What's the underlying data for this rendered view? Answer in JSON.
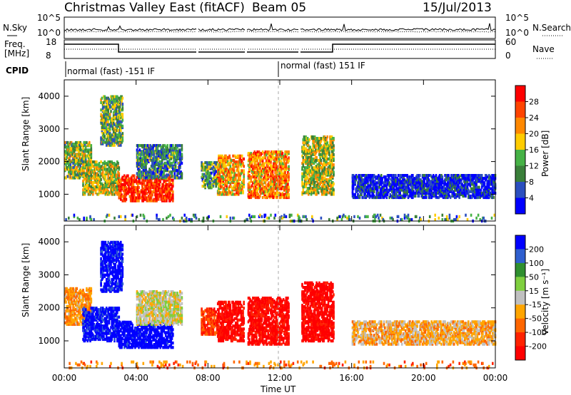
{
  "header": {
    "station": "Christmas Valley East (fitACF)",
    "beam": "Beam 05",
    "date": "15/Jul/2013"
  },
  "noise_panel": {
    "left_label": "N.Sky",
    "right_label": "N.Search",
    "ticks_left": [
      "10^5",
      "10^0"
    ],
    "ticks_right": [
      "10^5",
      "10^0"
    ]
  },
  "freq_panel": {
    "left_label_1": "Freq.",
    "left_label_2": "[MHz]",
    "right_label": "Nave",
    "ticks_left": [
      "18",
      "8"
    ],
    "ticks_right": [
      "60",
      "0"
    ]
  },
  "cpid": {
    "label": "CPID",
    "mode1": "normal (fast) -151 IF",
    "mode2": "normal (fast) 151 IF"
  },
  "colors": {
    "power_scale": [
      "#0000ff",
      "#2b4fbf",
      "#3a7f3a",
      "#46b246",
      "#ffcc00",
      "#ff8800",
      "#ff4400",
      "#ff0000"
    ],
    "velocity_scale": [
      "#0000ff",
      "#2f5fcf",
      "#2f8f2f",
      "#7fcf3f",
      "#c0c0c0",
      "#ffa500",
      "#ff6600",
      "#ff2200",
      "#ff0000"
    ]
  },
  "chart_data": [
    {
      "type": "heatmap",
      "name": "power",
      "ylabel": "Slant Range [km]",
      "ylim": [
        180,
        4500
      ],
      "y_ticks": [
        1000,
        2000,
        3000,
        4000
      ],
      "xlim_hours": [
        0,
        24
      ],
      "x_ticks": [
        "00:00",
        "04:00",
        "08:00",
        "12:00",
        "16:00",
        "20:00",
        "00:00"
      ],
      "colorbar": {
        "label": "Power [dB]",
        "ticks": [
          4,
          8,
          12,
          16,
          20,
          24,
          28
        ]
      },
      "scatter_regions": [
        {
          "t0": 0.0,
          "t1": 1.5,
          "r0": 1500,
          "r1": 2600,
          "level": 0.45
        },
        {
          "t0": 1.0,
          "t1": 3.0,
          "r0": 1000,
          "r1": 2000,
          "level": 0.5
        },
        {
          "t0": 2.0,
          "t1": 3.2,
          "r0": 2500,
          "r1": 4000,
          "level": 0.4
        },
        {
          "t0": 3.0,
          "t1": 6.0,
          "r0": 800,
          "r1": 1600,
          "level": 0.9
        },
        {
          "t0": 4.0,
          "t1": 6.5,
          "r0": 1500,
          "r1": 2500,
          "level": 0.3
        },
        {
          "t0": 7.6,
          "t1": 8.5,
          "r0": 1200,
          "r1": 2000,
          "level": 0.35
        },
        {
          "t0": 8.5,
          "t1": 10.0,
          "r0": 1000,
          "r1": 2200,
          "level": 0.65
        },
        {
          "t0": 10.2,
          "t1": 12.5,
          "r0": 900,
          "r1": 2300,
          "level": 0.7
        },
        {
          "t0": 13.2,
          "t1": 15.0,
          "r0": 1000,
          "r1": 2800,
          "level": 0.5
        },
        {
          "t0": 16.0,
          "t1": 24.0,
          "r0": 900,
          "r1": 1600,
          "level": 0.1
        },
        {
          "t0": 0.0,
          "t1": 24.0,
          "r0": 180,
          "r1": 400,
          "level": 0.3
        }
      ]
    },
    {
      "type": "heatmap",
      "name": "velocity",
      "ylabel": "Slant Range [km]",
      "ylim": [
        180,
        4500
      ],
      "y_ticks": [
        1000,
        2000,
        3000,
        4000
      ],
      "xlim_hours": [
        0,
        24
      ],
      "x_ticks": [
        "00:00",
        "04:00",
        "08:00",
        "12:00",
        "16:00",
        "20:00",
        "00:00"
      ],
      "xlabel": "Time UT",
      "colorbar": {
        "label": "Velocity [m s⁻¹]",
        "ticks": [
          200,
          100,
          50,
          15,
          -15,
          -50,
          -100,
          -200
        ]
      },
      "scatter_regions": [
        {
          "t0": 0.0,
          "t1": 1.5,
          "r0": 1500,
          "r1": 2600,
          "vel": -0.3
        },
        {
          "t0": 1.0,
          "t1": 3.0,
          "r0": 1000,
          "r1": 2000,
          "vel": 0.9
        },
        {
          "t0": 2.0,
          "t1": 3.2,
          "r0": 2500,
          "r1": 4000,
          "vel": 0.95
        },
        {
          "t0": 3.0,
          "t1": 6.0,
          "r0": 800,
          "r1": 1600,
          "vel": 1.0
        },
        {
          "t0": 4.0,
          "t1": 6.5,
          "r0": 1500,
          "r1": 2500,
          "vel": 0.0
        },
        {
          "t0": 7.6,
          "t1": 8.5,
          "r0": 1200,
          "r1": 2000,
          "vel": -0.6
        },
        {
          "t0": 8.5,
          "t1": 10.0,
          "r0": 1000,
          "r1": 2200,
          "vel": -0.9
        },
        {
          "t0": 10.2,
          "t1": 12.5,
          "r0": 900,
          "r1": 2300,
          "vel": -0.9
        },
        {
          "t0": 13.2,
          "t1": 15.0,
          "r0": 1000,
          "r1": 2800,
          "vel": -0.95
        },
        {
          "t0": 16.0,
          "t1": 24.0,
          "r0": 900,
          "r1": 1600,
          "vel": -0.2
        },
        {
          "t0": 0.0,
          "t1": 24.0,
          "r0": 180,
          "r1": 400,
          "vel": -0.4
        }
      ]
    }
  ]
}
